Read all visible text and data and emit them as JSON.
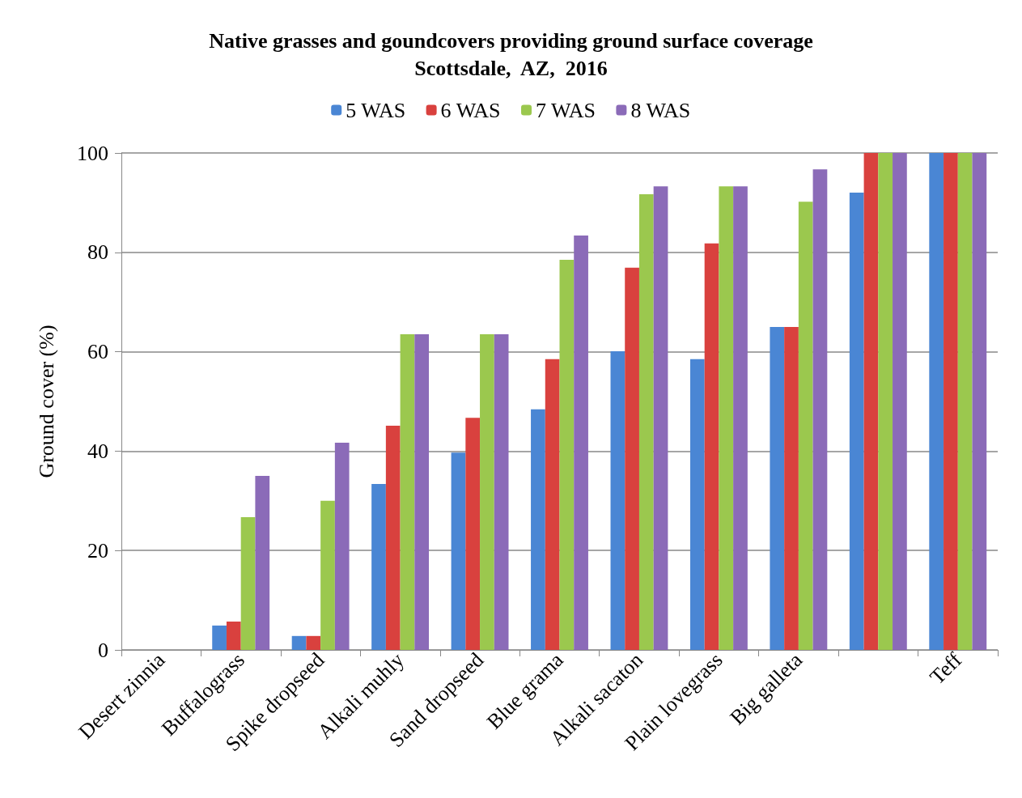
{
  "chart_data": {
    "type": "bar",
    "title": "Native grasses and goundcovers providing ground surface coverage\nScottsdale,  AZ,  2016",
    "ylabel": "Ground cover (%)",
    "categories": [
      "Desert zinnia",
      "Buffalograss",
      "Spike dropseed",
      "Alkali muhly",
      "Sand dropseed",
      "Blue grama",
      "Alkali sacaton",
      "Plain lovegrass",
      "Big galleta",
      null,
      "Teff"
    ],
    "series": [
      {
        "name": "5 WAS",
        "color": "#4a86d4",
        "values": [
          0,
          4.9,
          2.8,
          33.4,
          39.7,
          48.4,
          60.1,
          58.5,
          65,
          92,
          100
        ]
      },
      {
        "name": "6 WAS",
        "color": "#d9413e",
        "values": [
          0,
          5.7,
          2.8,
          45.1,
          46.7,
          58.5,
          76.9,
          81.8,
          65,
          100,
          100
        ]
      },
      {
        "name": "7 WAS",
        "color": "#9bc84e",
        "values": [
          0,
          26.7,
          30,
          63.5,
          63.5,
          78.5,
          91.7,
          93.3,
          90.2,
          100,
          100
        ]
      },
      {
        "name": "8 WAS",
        "color": "#8b6bb8",
        "values": [
          0,
          35,
          41.7,
          63.5,
          63.5,
          83.4,
          93.3,
          93.3,
          96.7,
          100,
          100
        ]
      }
    ],
    "ylim": [
      0,
      100
    ],
    "yticks": [
      0,
      20,
      40,
      60,
      80,
      100
    ],
    "grid": "y",
    "legend": "top"
  }
}
